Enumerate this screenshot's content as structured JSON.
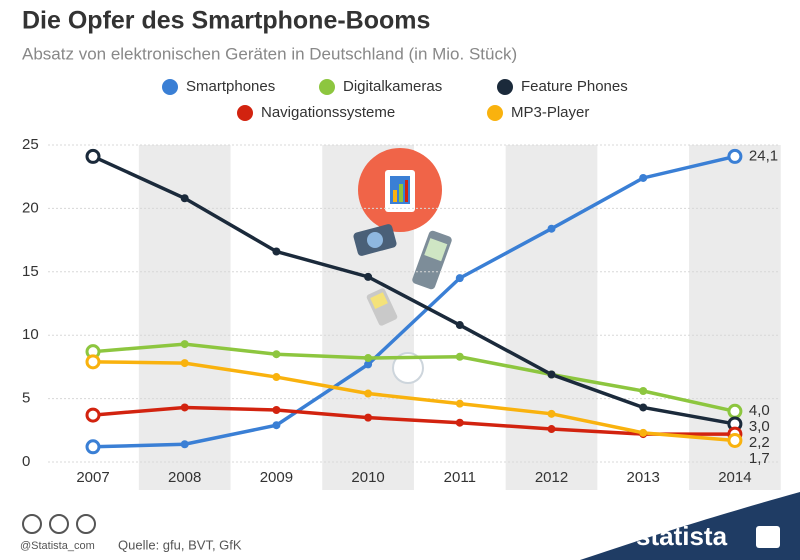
{
  "chart_data": {
    "type": "line",
    "title": "Die Opfer des Smartphone-Booms",
    "subtitle": "Absatz von elektronischen Geräten in Deutschland (in Mio. Stück)",
    "categories": [
      "2007",
      "2008",
      "2009",
      "2010",
      "2011",
      "2012",
      "2013",
      "2014"
    ],
    "ylim": [
      0,
      25
    ],
    "yticks": [
      0,
      5,
      10,
      15,
      20,
      25
    ],
    "series": [
      {
        "name": "Smartphones",
        "color": "#3a7fd5",
        "values": [
          1.2,
          1.4,
          2.9,
          7.7,
          14.5,
          18.4,
          22.4,
          24.1
        ],
        "value_labels": [
          null,
          null,
          null,
          null,
          null,
          null,
          null,
          "24,1"
        ]
      },
      {
        "name": "Digitalkameras",
        "color": "#8dc63f",
        "values": [
          8.7,
          9.3,
          8.5,
          8.2,
          8.3,
          6.9,
          5.6,
          4.0
        ],
        "value_labels": [
          null,
          null,
          null,
          null,
          null,
          null,
          null,
          "4,0"
        ]
      },
      {
        "name": "Feature Phones",
        "color": "#1b2a3b",
        "values": [
          24.1,
          20.8,
          16.6,
          14.6,
          10.8,
          6.9,
          4.3,
          3.0
        ],
        "value_labels": [
          null,
          null,
          null,
          null,
          null,
          null,
          null,
          "3,0"
        ]
      },
      {
        "name": "Navigationssysteme",
        "color": "#d2230f",
        "values": [
          3.7,
          4.3,
          4.1,
          3.5,
          3.1,
          2.6,
          2.2,
          2.2
        ],
        "value_labels": [
          null,
          null,
          null,
          null,
          null,
          null,
          null,
          "2,2"
        ]
      },
      {
        "name": "MP3-Player",
        "color": "#f9b20e",
        "values": [
          7.9,
          7.8,
          6.7,
          5.4,
          4.6,
          3.8,
          2.3,
          1.7
        ],
        "value_labels": [
          null,
          null,
          null,
          null,
          null,
          null,
          null,
          "1,7"
        ]
      }
    ],
    "credit": "@Statista_com",
    "source": "Quelle: gfu, BVT, GfK",
    "brand": "statista"
  }
}
